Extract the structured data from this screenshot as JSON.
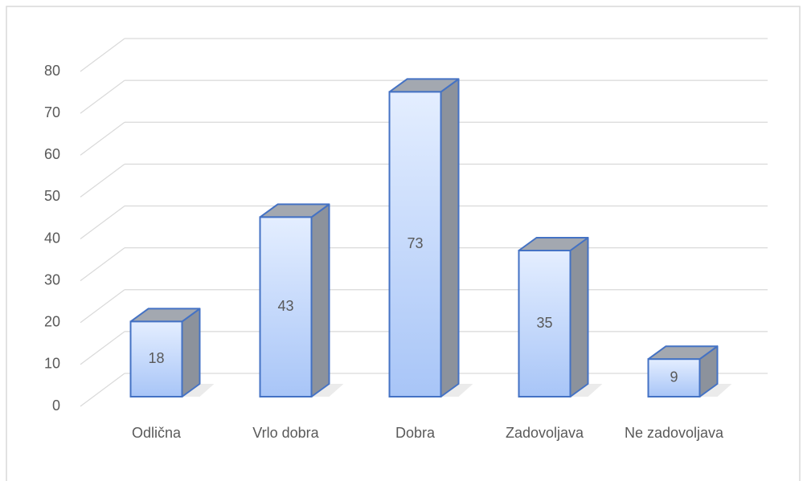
{
  "chart_data": {
    "type": "bar3d",
    "categories": [
      "Odlična",
      "Vrlo dobra",
      "Dobra",
      "Zadovoljava",
      "Ne zadovoljava"
    ],
    "values": [
      18,
      43,
      73,
      35,
      9
    ],
    "color": "#4472c4",
    "ylim": [
      0,
      80
    ],
    "yticks": [
      0,
      10,
      20,
      30,
      40,
      50,
      60,
      70,
      80
    ],
    "grid": true
  }
}
